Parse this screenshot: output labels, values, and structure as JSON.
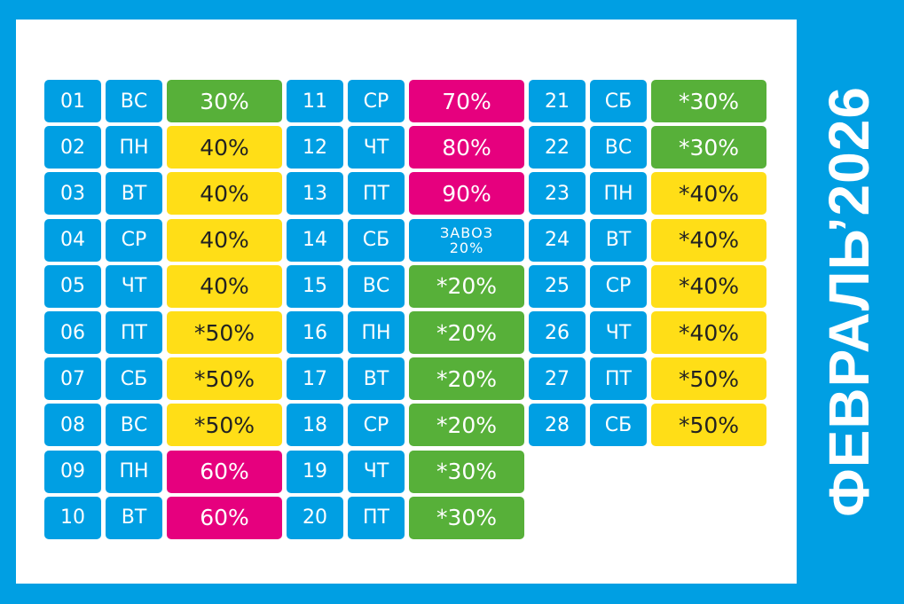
{
  "title": "ФЕВРАЛЬ’2026",
  "colors": {
    "frame": "#009fe3",
    "day_cell": "#009fe3",
    "green": "#57b039",
    "yellow": "#ffde17",
    "magenta": "#e6007e",
    "blue": "#009fe3"
  },
  "columns": [
    {
      "rows": [
        {
          "day": "01",
          "dow": "ВС",
          "value": "30%",
          "color": "green"
        },
        {
          "day": "02",
          "dow": "ПН",
          "value": "40%",
          "color": "yellow"
        },
        {
          "day": "03",
          "dow": "ВТ",
          "value": "40%",
          "color": "yellow"
        },
        {
          "day": "04",
          "dow": "СР",
          "value": "40%",
          "color": "yellow"
        },
        {
          "day": "05",
          "dow": "ЧТ",
          "value": "40%",
          "color": "yellow"
        },
        {
          "day": "06",
          "dow": "ПТ",
          "value": "*50%",
          "color": "yellow"
        },
        {
          "day": "07",
          "dow": "СБ",
          "value": "*50%",
          "color": "yellow"
        },
        {
          "day": "08",
          "dow": "ВС",
          "value": "*50%",
          "color": "yellow"
        },
        {
          "day": "09",
          "dow": "ПН",
          "value": "60%",
          "color": "magenta"
        },
        {
          "day": "10",
          "dow": "ВТ",
          "value": "60%",
          "color": "magenta"
        }
      ]
    },
    {
      "rows": [
        {
          "day": "11",
          "dow": "СР",
          "value": "70%",
          "color": "magenta"
        },
        {
          "day": "12",
          "dow": "ЧТ",
          "value": "80%",
          "color": "magenta"
        },
        {
          "day": "13",
          "dow": "ПТ",
          "value": "90%",
          "color": "magenta"
        },
        {
          "day": "14",
          "dow": "СБ",
          "value": "ЗАВОЗ",
          "value2": "20%",
          "color": "blue"
        },
        {
          "day": "15",
          "dow": "ВС",
          "value": "*20%",
          "color": "green"
        },
        {
          "day": "16",
          "dow": "ПН",
          "value": "*20%",
          "color": "green"
        },
        {
          "day": "17",
          "dow": "ВТ",
          "value": "*20%",
          "color": "green"
        },
        {
          "day": "18",
          "dow": "СР",
          "value": "*20%",
          "color": "green"
        },
        {
          "day": "19",
          "dow": "ЧТ",
          "value": "*30%",
          "color": "green"
        },
        {
          "day": "20",
          "dow": "ПТ",
          "value": "*30%",
          "color": "green"
        }
      ]
    },
    {
      "rows": [
        {
          "day": "21",
          "dow": "СБ",
          "value": "*30%",
          "color": "green"
        },
        {
          "day": "22",
          "dow": "ВС",
          "value": "*30%",
          "color": "green"
        },
        {
          "day": "23",
          "dow": "ПН",
          "value": "*40%",
          "color": "yellow"
        },
        {
          "day": "24",
          "dow": "ВТ",
          "value": "*40%",
          "color": "yellow"
        },
        {
          "day": "25",
          "dow": "СР",
          "value": "*40%",
          "color": "yellow"
        },
        {
          "day": "26",
          "dow": "ЧТ",
          "value": "*40%",
          "color": "yellow"
        },
        {
          "day": "27",
          "dow": "ПТ",
          "value": "*50%",
          "color": "yellow"
        },
        {
          "day": "28",
          "dow": "СБ",
          "value": "*50%",
          "color": "yellow"
        }
      ]
    }
  ]
}
